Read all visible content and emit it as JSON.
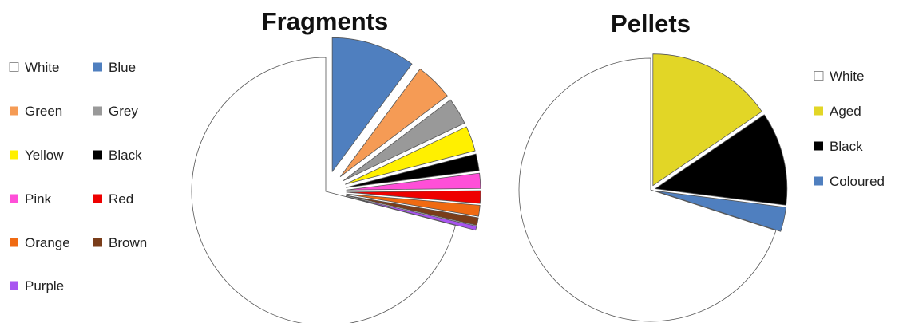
{
  "chart_data": [
    {
      "type": "pie",
      "title": "Fragments",
      "legend_placement": "left",
      "slices": [
        {
          "label": "White",
          "value": 70.0,
          "color": "#ffffff",
          "exploded": false
        },
        {
          "label": "Blue",
          "value": 10.0,
          "color": "#4f7fbf",
          "exploded": true
        },
        {
          "label": "Green",
          "value": 4.5,
          "color": "#f59b55",
          "exploded": true
        },
        {
          "label": "Grey",
          "value": 3.2,
          "color": "#999999",
          "exploded": true
        },
        {
          "label": "Yellow",
          "value": 3.0,
          "color": "#fff000",
          "exploded": true
        },
        {
          "label": "Black",
          "value": 2.0,
          "color": "#000000",
          "exploded": true
        },
        {
          "label": "Pink",
          "value": 1.8,
          "color": "#ff4fd8",
          "exploded": true
        },
        {
          "label": "Red",
          "value": 1.5,
          "color": "#ee0000",
          "exploded": true
        },
        {
          "label": "Orange",
          "value": 1.3,
          "color": "#f06a12",
          "exploded": true
        },
        {
          "label": "Brown",
          "value": 0.9,
          "color": "#7a3d1a",
          "exploded": true
        },
        {
          "label": "Purple",
          "value": 0.5,
          "color": "#a855f0",
          "exploded": true
        }
      ]
    },
    {
      "type": "pie",
      "title": "Pellets",
      "legend_placement": "right",
      "slices": [
        {
          "label": "White",
          "value": 70.0,
          "color": "#ffffff",
          "exploded": false
        },
        {
          "label": "Aged",
          "value": 15.5,
          "color": "#e2d626",
          "exploded": true
        },
        {
          "label": "Black",
          "value": 11.5,
          "color": "#000000",
          "exploded": true
        },
        {
          "label": "Coloured",
          "value": 3.0,
          "color": "#4f7fbf",
          "exploded": true
        }
      ]
    }
  ]
}
